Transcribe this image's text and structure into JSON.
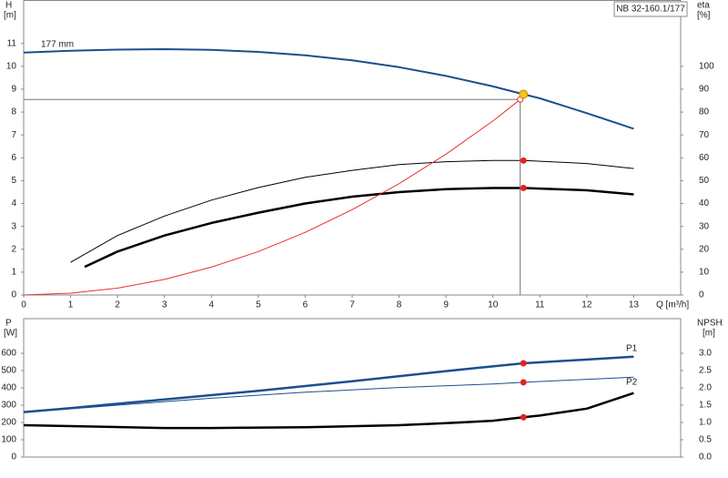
{
  "chart_data": [
    {
      "type": "line",
      "title": "NB 32-160.1/177",
      "ylabel": "H",
      "yunit": "[m]",
      "y2label": "eta",
      "y2unit": "[%]",
      "xlabel": "Q [m³/h]",
      "xlim": [
        0,
        14
      ],
      "xticks": [
        0,
        1,
        2,
        3,
        4,
        5,
        6,
        7,
        8,
        9,
        10,
        11,
        12,
        13
      ],
      "ylim": [
        0,
        12.9
      ],
      "yticks": [
        0,
        1,
        2,
        3,
        4,
        5,
        6,
        7,
        8,
        9,
        10,
        11
      ],
      "y2lim": [
        0,
        129
      ],
      "y2ticks": [
        0,
        10,
        20,
        30,
        40,
        50,
        60,
        70,
        80,
        90,
        100
      ],
      "marker_color": "#e8201f",
      "series": [
        {
          "name": "177 mm",
          "color": "#1c4e8f",
          "width": 2,
          "x": [
            0,
            1,
            2,
            3,
            4,
            5,
            6,
            7,
            8,
            9,
            10,
            10.65,
            11,
            12,
            13
          ],
          "values": [
            10.6,
            10.68,
            10.73,
            10.75,
            10.72,
            10.63,
            10.48,
            10.26,
            9.96,
            9.58,
            9.12,
            8.78,
            8.6,
            7.95,
            7.27
          ]
        },
        {
          "color": "#000000",
          "width": 1,
          "axis": "y2",
          "x": [
            1,
            2,
            3,
            4,
            5,
            6,
            7,
            8,
            9,
            10,
            10.65,
            12,
            13
          ],
          "values": [
            14.3,
            26,
            34.5,
            41.5,
            47,
            51.5,
            54.5,
            57,
            58.3,
            58.8,
            58.8,
            57.5,
            55.3
          ],
          "marker_index": 10
        },
        {
          "color": "#000000",
          "width": 2.5,
          "axis": "y2",
          "x": [
            1.3,
            2,
            3,
            4,
            5,
            6,
            7,
            8,
            9,
            10,
            10.65,
            12,
            13
          ],
          "values": [
            12.3,
            19,
            26,
            31.5,
            36,
            40,
            43,
            45,
            46.3,
            46.8,
            46.8,
            45.8,
            44
          ],
          "marker_index": 10
        },
        {
          "color": "#e83030",
          "width": 1,
          "x": [
            0,
            1,
            2,
            3,
            4,
            5,
            6,
            7,
            8,
            9,
            10,
            10.58
          ],
          "values": [
            0,
            0.08,
            0.3,
            0.68,
            1.22,
            1.9,
            2.74,
            3.73,
            4.87,
            6.16,
            7.61,
            8.55
          ]
        }
      ],
      "operating_point": {
        "x": 10.65,
        "y": 8.78,
        "color": "#f5c518"
      },
      "system_point": {
        "x": 10.58,
        "y": 8.55
      }
    },
    {
      "type": "line",
      "ylabel": "P",
      "yunit": "[W]",
      "y2label": "NPSH",
      "y2unit": "[m]",
      "xlim": [
        0,
        14
      ],
      "ylim": [
        0,
        800
      ],
      "yticks": [
        0,
        100,
        200,
        300,
        400,
        500,
        600
      ],
      "y2lim": [
        0,
        4
      ],
      "y2ticks": [
        {
          "value": 0,
          "label": "0.0"
        },
        0.5,
        {
          "value": 1,
          "label": "1.0"
        },
        1.5,
        {
          "value": 2,
          "label": "2.0"
        },
        2.5,
        {
          "value": 3,
          "label": "3.0"
        }
      ],
      "marker_color": "#e8201f",
      "series": [
        {
          "name": "P1",
          "color": "#1c4e8f",
          "width": 2.5,
          "x": [
            0,
            1,
            3,
            5,
            7,
            9,
            10.65,
            13
          ],
          "values": [
            260,
            283,
            333,
            383,
            438,
            497,
            542,
            580
          ],
          "marker_index": 6
        },
        {
          "name": "P2",
          "color": "#1c4e8f",
          "width": 1,
          "x": [
            0,
            2,
            4,
            6,
            8,
            10,
            10.65,
            13
          ],
          "values": [
            258,
            300,
            340,
            375,
            402,
            422,
            432,
            462
          ],
          "marker_index": 6
        },
        {
          "color": "#000000",
          "width": 2.5,
          "axis": "y2",
          "x": [
            0,
            3,
            4,
            6,
            8,
            9,
            10,
            10.65,
            11,
            12,
            13
          ],
          "values": [
            0.92,
            0.84,
            0.84,
            0.86,
            0.92,
            0.98,
            1.05,
            1.15,
            1.2,
            1.4,
            1.85
          ],
          "marker_index": 7
        }
      ]
    }
  ]
}
